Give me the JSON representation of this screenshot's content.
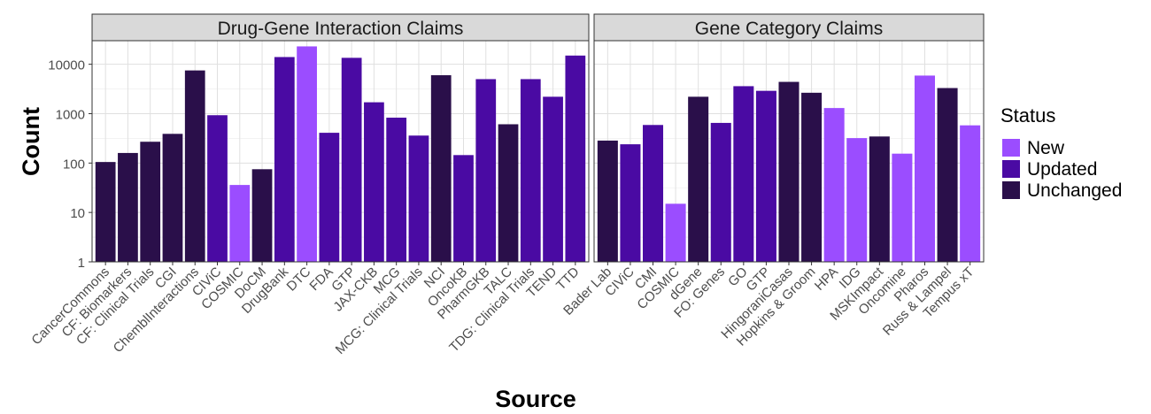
{
  "chart_data": {
    "type": "bar",
    "xlabel": "Source",
    "ylabel": "Count",
    "yscale": "log10",
    "ylim": [
      1,
      30000
    ],
    "yticks": [
      1,
      10,
      100,
      1000,
      10000
    ],
    "ytick_labels": [
      "1",
      "10",
      "100",
      "1000",
      "10000"
    ],
    "grid": true,
    "legend": {
      "title": "Status",
      "placement": "right",
      "entries": [
        "New",
        "Updated",
        "Unchanged"
      ]
    },
    "status_colors": {
      "New": "#9b4dff",
      "Updated": "#4a0aa3",
      "Unchanged": "#2a0f4a"
    },
    "panels": [
      {
        "title": "Drug-Gene Interaction Claims",
        "bars": [
          {
            "category": "CancerCommons",
            "value": 105,
            "status": "Unchanged"
          },
          {
            "category": "CF: Biomarkers",
            "value": 160,
            "status": "Unchanged"
          },
          {
            "category": "CF: Clinical Trials",
            "value": 270,
            "status": "Unchanged"
          },
          {
            "category": "CGI",
            "value": 390,
            "status": "Unchanged"
          },
          {
            "category": "ChemblInteractions",
            "value": 7500,
            "status": "Unchanged"
          },
          {
            "category": "CIViC",
            "value": 930,
            "status": "Updated"
          },
          {
            "category": "COSMIC",
            "value": 36,
            "status": "New"
          },
          {
            "category": "DoCM",
            "value": 75,
            "status": "Unchanged"
          },
          {
            "category": "DrugBank",
            "value": 14000,
            "status": "Updated"
          },
          {
            "category": "DTC",
            "value": 23000,
            "status": "New"
          },
          {
            "category": "FDA",
            "value": 410,
            "status": "Updated"
          },
          {
            "category": "GTP",
            "value": 13500,
            "status": "Updated"
          },
          {
            "category": "JAX-CKB",
            "value": 1700,
            "status": "Updated"
          },
          {
            "category": "MCG",
            "value": 830,
            "status": "Updated"
          },
          {
            "category": "MCG: Clinical Trials",
            "value": 360,
            "status": "Updated"
          },
          {
            "category": "NCI",
            "value": 6000,
            "status": "Unchanged"
          },
          {
            "category": "OncoKB",
            "value": 145,
            "status": "Updated"
          },
          {
            "category": "PharmGKB",
            "value": 5000,
            "status": "Updated"
          },
          {
            "category": "TALC",
            "value": 610,
            "status": "Unchanged"
          },
          {
            "category": "TDG: Clinical Trials",
            "value": 5000,
            "status": "Updated"
          },
          {
            "category": "TEND",
            "value": 2200,
            "status": "Updated"
          },
          {
            "category": "TTD",
            "value": 15000,
            "status": "Updated"
          }
        ]
      },
      {
        "title": "Gene Category Claims",
        "bars": [
          {
            "category": "Bader Lab",
            "value": 285,
            "status": "Unchanged"
          },
          {
            "category": "CIViC",
            "value": 240,
            "status": "Updated"
          },
          {
            "category": "CMI",
            "value": 590,
            "status": "Updated"
          },
          {
            "category": "COSMIC",
            "value": 15,
            "status": "New"
          },
          {
            "category": "dGene",
            "value": 2200,
            "status": "Unchanged"
          },
          {
            "category": "FO: Genes",
            "value": 650,
            "status": "Updated"
          },
          {
            "category": "GO",
            "value": 3600,
            "status": "Updated"
          },
          {
            "category": "GTP",
            "value": 2900,
            "status": "Updated"
          },
          {
            "category": "HingoraniCasas",
            "value": 4400,
            "status": "Unchanged"
          },
          {
            "category": "Hopkins & Groom",
            "value": 2650,
            "status": "Unchanged"
          },
          {
            "category": "HPA",
            "value": 1300,
            "status": "New"
          },
          {
            "category": "IDG",
            "value": 320,
            "status": "New"
          },
          {
            "category": "MSKImpact",
            "value": 345,
            "status": "Unchanged"
          },
          {
            "category": "Oncomine",
            "value": 155,
            "status": "New"
          },
          {
            "category": "Pharos",
            "value": 5900,
            "status": "New"
          },
          {
            "category": "Russ & Lampel",
            "value": 3300,
            "status": "Unchanged"
          },
          {
            "category": "Tempus xT",
            "value": 580,
            "status": "New"
          }
        ]
      }
    ]
  }
}
